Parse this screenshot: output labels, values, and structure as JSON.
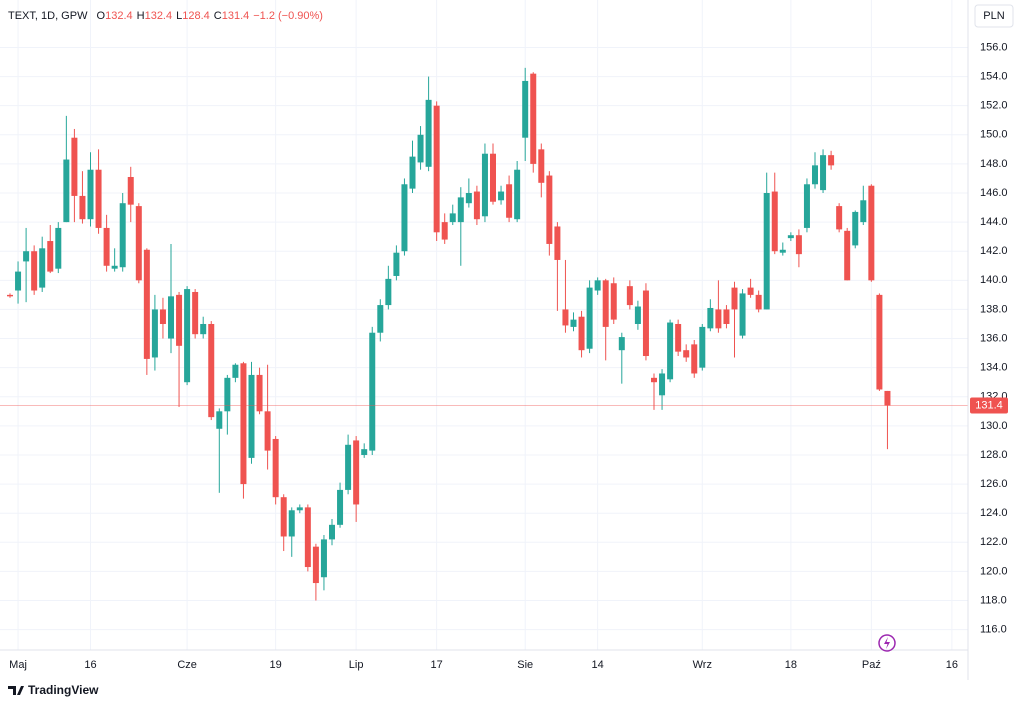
{
  "chart_data": {
    "type": "candlestick",
    "title": "TEXT, 1D, GPW",
    "ohlc_labels": [
      "O",
      "H",
      "L",
      "C"
    ],
    "change": "−1.2 (−0.90%)",
    "currency": "PLN",
    "brand": "TradingView",
    "up_color": "#26a69a",
    "down_color": "#ef5350",
    "grid": true,
    "ylim": [
      114.6,
      157.2
    ],
    "yticks": [
      {
        "value": 116,
        "label": "116.0"
      },
      {
        "value": 118,
        "label": "118.0"
      },
      {
        "value": 120,
        "label": "120.0"
      },
      {
        "value": 122,
        "label": "122.0"
      },
      {
        "value": 124,
        "label": "124.0"
      },
      {
        "value": 126,
        "label": "126.0"
      },
      {
        "value": 128,
        "label": "128.0"
      },
      {
        "value": 130,
        "label": "130.0"
      },
      {
        "value": 132,
        "label": "132.0"
      },
      {
        "value": 134,
        "label": "134.0"
      },
      {
        "value": 136,
        "label": "136.0"
      },
      {
        "value": 138,
        "label": "138.0"
      },
      {
        "value": 140,
        "label": "140.0"
      },
      {
        "value": 142,
        "label": "142.0"
      },
      {
        "value": 144,
        "label": "144.0"
      },
      {
        "value": 146,
        "label": "146.0"
      },
      {
        "value": 148,
        "label": "148.0"
      },
      {
        "value": 150,
        "label": "150.0"
      },
      {
        "value": 152,
        "label": "152.0"
      },
      {
        "value": 154,
        "label": "154.0"
      },
      {
        "value": 156,
        "label": "156.0"
      }
    ],
    "categories": [
      null,
      "Maj",
      null,
      null,
      null,
      null,
      null,
      null,
      null,
      null,
      "16",
      null,
      null,
      null,
      null,
      null,
      null,
      null,
      null,
      null,
      null,
      null,
      "Cze",
      null,
      null,
      null,
      null,
      null,
      null,
      null,
      null,
      null,
      null,
      "19",
      null,
      null,
      null,
      null,
      null,
      null,
      null,
      null,
      null,
      "Lip",
      null,
      null,
      null,
      null,
      null,
      null,
      null,
      null,
      null,
      "17",
      null,
      null,
      null,
      null,
      null,
      null,
      null,
      null,
      null,
      null,
      "Sie",
      null,
      null,
      null,
      null,
      null,
      null,
      null,
      null,
      "14",
      null,
      null,
      null,
      null,
      null,
      null,
      null,
      null,
      null,
      null,
      null,
      null,
      "Wrz",
      null,
      null,
      null,
      null,
      null,
      null,
      null,
      null,
      null,
      null,
      "18",
      null,
      null,
      null,
      null,
      null,
      null,
      null,
      null,
      null,
      "Paź",
      null,
      null,
      null,
      null,
      null,
      null,
      null,
      null,
      null,
      "16",
      null
    ],
    "open": [
      139.0,
      139.3,
      141.3,
      142.0,
      139.5,
      142.7,
      140.8,
      144.0,
      149.8,
      145.8,
      144.2,
      147.6,
      143.6,
      140.8,
      140.9,
      147.1,
      145.1,
      142.1,
      134.7,
      138.0,
      136.0,
      139.0,
      133.0,
      139.2,
      136.3,
      137.0,
      129.8,
      131.0,
      133.3,
      134.3,
      127.8,
      133.5,
      131.0,
      129.1,
      125.1,
      122.4,
      124.2,
      124.4,
      121.7,
      119.6,
      122.2,
      123.2,
      125.6,
      129.0,
      128.0,
      128.3,
      136.4,
      138.3,
      140.3,
      142.0,
      146.3,
      148.1,
      147.8,
      152.0,
      144.0,
      144.0,
      144.0,
      145.3,
      146.1,
      144.4,
      148.7,
      145.5,
      146.6,
      144.2,
      149.8,
      154.2,
      149.0,
      147.2,
      143.7,
      138.0,
      136.8,
      137.5,
      135.3,
      139.3,
      140.0,
      139.8,
      135.2,
      139.6,
      137.0,
      139.3,
      133.3,
      132.1,
      133.2,
      137.0,
      135.2,
      135.6,
      134.0,
      136.7,
      138.0,
      138.0,
      139.5,
      136.2,
      139.5,
      139.0,
      138.0,
      146.1,
      141.9,
      142.9,
      143.1,
      143.6,
      146.6,
      146.2,
      148.6,
      145.1,
      143.4,
      142.4,
      144.0,
      146.5,
      139.0,
      132.4,
      null,
      null,
      null,
      null,
      null,
      null,
      null,
      null,
      null
    ],
    "high": [
      139.1,
      141.3,
      143.6,
      142.4,
      143.0,
      143.8,
      144.0,
      151.3,
      150.4,
      147.5,
      148.8,
      149.0,
      144.5,
      142.2,
      146.0,
      147.8,
      145.3,
      142.2,
      139.0,
      138.8,
      142.5,
      139.2,
      139.6,
      139.4,
      137.5,
      137.2,
      131.2,
      133.5,
      134.3,
      134.4,
      134.4,
      134.0,
      134.2,
      129.3,
      125.3,
      124.4,
      124.6,
      124.6,
      121.9,
      122.5,
      123.6,
      126.1,
      129.4,
      129.3,
      128.8,
      136.8,
      138.7,
      141.0,
      142.4,
      147.0,
      149.6,
      150.6,
      154.0,
      152.3,
      144.6,
      145.2,
      146.4,
      147.0,
      146.5,
      149.4,
      149.4,
      146.5,
      147.2,
      148.2,
      154.6,
      154.3,
      149.4,
      147.5,
      144.0,
      141.4,
      137.8,
      137.9,
      140.0,
      140.2,
      140.1,
      140.2,
      136.4,
      140.0,
      138.6,
      139.8,
      133.6,
      133.9,
      137.3,
      137.3,
      135.6,
      135.9,
      137.0,
      138.7,
      140.0,
      138.3,
      139.9,
      139.4,
      140.1,
      139.3,
      147.4,
      147.4,
      142.6,
      143.3,
      143.5,
      147.0,
      148.8,
      149.0,
      148.9,
      145.3,
      143.6,
      144.8,
      146.5,
      146.6,
      139.1,
      132.4,
      null,
      null,
      null,
      null,
      null,
      null,
      null,
      null,
      null
    ],
    "low": [
      138.8,
      138.4,
      138.5,
      139.0,
      139.2,
      140.5,
      140.5,
      144.0,
      144.0,
      143.9,
      143.7,
      143.2,
      140.6,
      140.6,
      140.6,
      144.0,
      139.8,
      133.5,
      133.8,
      136.0,
      135.0,
      131.3,
      132.8,
      136.0,
      136.0,
      130.4,
      125.4,
      129.4,
      133.0,
      125.0,
      127.4,
      130.8,
      127.0,
      124.6,
      121.4,
      121.0,
      124.0,
      120.0,
      118.0,
      118.7,
      121.8,
      123.0,
      125.3,
      123.4,
      127.8,
      128.0,
      135.8,
      138.0,
      140.0,
      141.7,
      146.0,
      147.6,
      147.5,
      142.7,
      142.5,
      143.8,
      141.0,
      145.0,
      143.8,
      144.0,
      145.2,
      145.2,
      144.0,
      144.0,
      148.2,
      147.4,
      145.7,
      141.7,
      137.9,
      136.4,
      136.5,
      134.7,
      135.0,
      139.0,
      134.5,
      137.0,
      132.9,
      138.0,
      136.6,
      134.5,
      131.1,
      131.1,
      133.0,
      134.8,
      134.4,
      133.3,
      133.8,
      136.5,
      136.4,
      136.7,
      134.7,
      136.0,
      138.8,
      137.8,
      138.0,
      141.8,
      141.7,
      142.7,
      140.9,
      143.3,
      146.3,
      146.0,
      147.6,
      143.3,
      140.0,
      142.2,
      143.8,
      139.9,
      132.4,
      128.4,
      null,
      null,
      null,
      null,
      null,
      null,
      null,
      null,
      null
    ],
    "close": [
      138.9,
      140.6,
      142.0,
      139.3,
      142.2,
      140.6,
      143.6,
      148.3,
      145.8,
      144.2,
      147.6,
      143.6,
      141.0,
      141.0,
      145.3,
      145.2,
      140.0,
      134.6,
      138.0,
      137.0,
      138.9,
      135.5,
      139.4,
      136.3,
      137.0,
      130.6,
      131.0,
      133.3,
      134.2,
      126.0,
      133.5,
      131.0,
      128.3,
      125.1,
      122.4,
      124.2,
      124.4,
      120.3,
      119.2,
      122.2,
      123.2,
      125.6,
      128.7,
      124.6,
      128.4,
      136.4,
      138.3,
      140.1,
      141.9,
      146.6,
      148.5,
      150.0,
      152.4,
      143.3,
      142.8,
      144.6,
      145.7,
      146.0,
      144.2,
      148.7,
      145.4,
      146.1,
      144.3,
      147.6,
      153.7,
      148.0,
      146.7,
      142.5,
      141.4,
      136.9,
      137.3,
      135.2,
      139.5,
      140.0,
      136.8,
      137.3,
      136.1,
      138.3,
      138.2,
      134.8,
      133.0,
      133.6,
      137.1,
      135.1,
      134.7,
      133.6,
      136.8,
      138.1,
      136.7,
      137.0,
      138.0,
      139.1,
      139.0,
      138.0,
      146.0,
      142.0,
      142.1,
      143.1,
      141.8,
      146.6,
      147.9,
      148.6,
      147.9,
      143.5,
      140.0,
      144.7,
      145.5,
      140.0,
      132.5,
      131.4,
      null,
      null,
      null,
      null,
      null,
      null,
      null,
      null,
      null
    ]
  }
}
